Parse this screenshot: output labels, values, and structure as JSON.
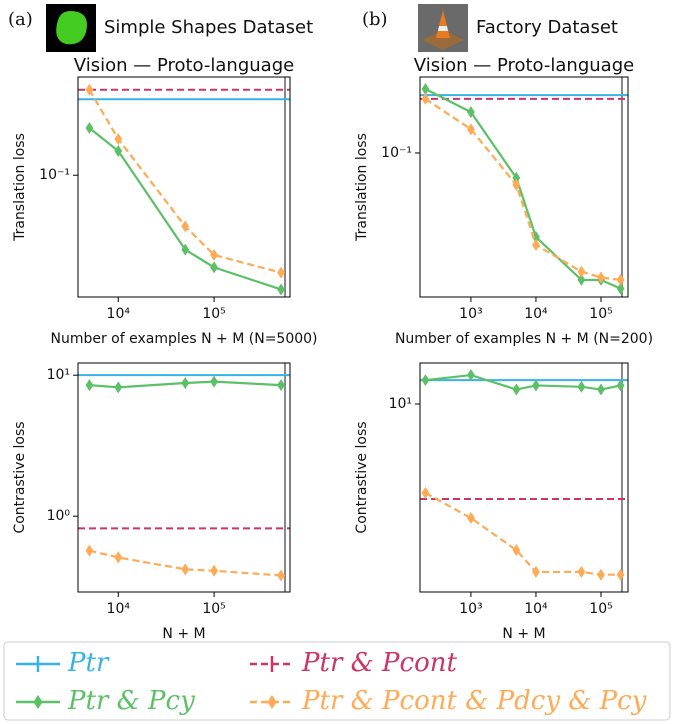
{
  "panels": [
    {
      "label": "(a)",
      "title": "Simple Shapes Dataset"
    },
    {
      "label": "(b)",
      "title": "Factory Dataset"
    }
  ],
  "chart_data": [
    {
      "type": "line",
      "title": "Vision — Proto-language",
      "xlabel": "Number of examples N + M (N=5000)",
      "ylabel": "Translation loss",
      "xscale": "log",
      "yscale": "log",
      "xlim": [
        3800,
        620000
      ],
      "ylim": [
        0.0155,
        0.45
      ],
      "xticks": [
        {
          "value": 10000,
          "label": "10⁴"
        },
        {
          "value": 100000,
          "label": "10⁵"
        }
      ],
      "yticks": [
        {
          "value": 0.1,
          "label": "10⁻¹"
        }
      ],
      "vline": 550000,
      "series": [
        {
          "name": "Ptr",
          "color": "#36b3e6",
          "value": 0.32
        },
        {
          "name": "Ptr & Pcont",
          "color": "#cc3366",
          "dash": true,
          "value": 0.37
        },
        {
          "name": "Ptr & Pcy",
          "color": "#5cc067",
          "marker": "diamond",
          "x": [
            5000,
            10000,
            50000,
            100000,
            500000
          ],
          "values": [
            0.206,
            0.145,
            0.032,
            0.0244,
            0.0174
          ]
        },
        {
          "name": "Ptr & Pcont & Pdcy & Pcy",
          "color": "#ffaa55",
          "dash": true,
          "marker": "diamond",
          "x": [
            5000,
            10000,
            50000,
            100000,
            500000
          ],
          "values": [
            0.37,
            0.174,
            0.0457,
            0.0295,
            0.0225
          ]
        }
      ]
    },
    {
      "type": "line",
      "xlabel": "N + M",
      "ylabel": "Contrastive loss",
      "xscale": "log",
      "yscale": "log",
      "xlim": [
        3800,
        620000
      ],
      "ylim": [
        0.29,
        12.2
      ],
      "xticks": [
        {
          "value": 10000,
          "label": "10⁴"
        },
        {
          "value": 100000,
          "label": "10⁵"
        }
      ],
      "yticks": [
        {
          "value": 1,
          "label": "10⁰"
        },
        {
          "value": 10,
          "label": "10¹"
        }
      ],
      "vline": 550000,
      "series": [
        {
          "color": "#36b3e6",
          "value": 10
        },
        {
          "color": "#cc3366",
          "dash": true,
          "value": 0.82
        },
        {
          "color": "#5cc067",
          "marker": "diamond",
          "x": [
            5000,
            10000,
            50000,
            100000,
            500000
          ],
          "values": [
            8.5,
            8.2,
            8.8,
            9.0,
            8.5
          ]
        },
        {
          "color": "#ffaa55",
          "dash": true,
          "marker": "diamond",
          "x": [
            5000,
            10000,
            50000,
            100000,
            500000
          ],
          "values": [
            0.57,
            0.51,
            0.42,
            0.41,
            0.38
          ]
        }
      ]
    },
    {
      "type": "line",
      "title": "Vision — Proto-language",
      "xlabel": "Number of examples  N + M  (N=200)",
      "ylabel": "Translation loss",
      "xscale": "log",
      "yscale": "log",
      "xlim": [
        165,
        260000
      ],
      "ylim": [
        0.0142,
        0.28
      ],
      "xticks": [
        {
          "value": 1000,
          "label": "10³"
        },
        {
          "value": 10000,
          "label": "10⁴"
        },
        {
          "value": 100000,
          "label": "10⁵"
        }
      ],
      "yticks": [
        {
          "value": 0.1,
          "label": "10⁻¹"
        }
      ],
      "vline": 210000,
      "series": [
        {
          "color": "#36b3e6",
          "value": 0.219
        },
        {
          "color": "#cc3366",
          "dash": true,
          "value": 0.208
        },
        {
          "color": "#5cc067",
          "marker": "diamond",
          "x": [
            200,
            1000,
            5000,
            10000,
            50000,
            100000,
            200000
          ],
          "values": [
            0.238,
            0.174,
            0.0713,
            0.032,
            0.0179,
            0.0179,
            0.0159
          ]
        },
        {
          "color": "#ffaa55",
          "dash": true,
          "marker": "diamond",
          "x": [
            200,
            1000,
            5000,
            10000,
            50000,
            100000,
            200000
          ],
          "values": [
            0.208,
            0.138,
            0.0648,
            0.0288,
            0.02,
            0.0185,
            0.0179
          ]
        }
      ]
    },
    {
      "type": "line",
      "xlabel": "N + M",
      "ylabel": "Contrastive loss",
      "xscale": "log",
      "yscale": "log",
      "xlim": [
        165,
        260000
      ],
      "ylim": [
        2.9,
        13.1
      ],
      "xticks": [
        {
          "value": 1000,
          "label": "10³"
        },
        {
          "value": 10000,
          "label": "10⁴"
        },
        {
          "value": 100000,
          "label": "10⁵"
        }
      ],
      "yticks": [
        {
          "value": 10,
          "label": "10¹"
        }
      ],
      "vline": 210000,
      "series": [
        {
          "color": "#36b3e6",
          "value": 11.7
        },
        {
          "color": "#cc3366",
          "dash": true,
          "value": 5.35
        },
        {
          "color": "#5cc067",
          "marker": "diamond",
          "x": [
            200,
            1000,
            5000,
            10000,
            50000,
            100000,
            200000
          ],
          "values": [
            11.7,
            12.1,
            11.0,
            11.3,
            11.2,
            11.0,
            11.3
          ]
        },
        {
          "color": "#ffaa55",
          "dash": true,
          "marker": "diamond",
          "x": [
            200,
            1000,
            5000,
            10000,
            50000,
            100000,
            200000
          ],
          "values": [
            5.57,
            4.72,
            3.82,
            3.31,
            3.31,
            3.25,
            3.25
          ]
        }
      ]
    }
  ]
}
